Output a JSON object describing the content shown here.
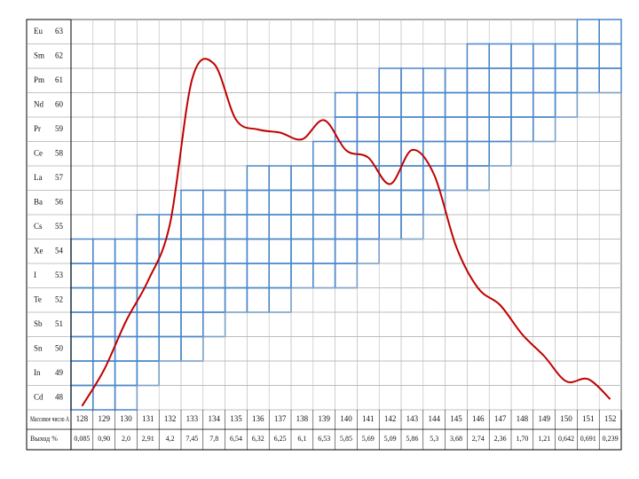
{
  "table": {
    "rows": [
      {
        "symbol": "Eu",
        "z": "63"
      },
      {
        "symbol": "Sm",
        "z": "62"
      },
      {
        "symbol": "Pm",
        "z": "61"
      },
      {
        "symbol": "Nd",
        "z": "60"
      },
      {
        "symbol": "Pr",
        "z": "59"
      },
      {
        "symbol": "Ce",
        "z": "58"
      },
      {
        "symbol": "La",
        "z": "57"
      },
      {
        "symbol": "Ba",
        "z": "56"
      },
      {
        "symbol": "Cs",
        "z": "55"
      },
      {
        "symbol": "Xe",
        "z": "54"
      },
      {
        "symbol": "I",
        "z": "53"
      },
      {
        "symbol": "Te",
        "z": "52"
      },
      {
        "symbol": "Sb",
        "z": "51"
      },
      {
        "symbol": "Sn",
        "z": "50"
      },
      {
        "symbol": "In",
        "z": "49"
      },
      {
        "symbol": "Cd",
        "z": "48"
      }
    ],
    "mass_label": "Массовое число A",
    "yield_label": "Выход %",
    "mass_numbers": [
      "128",
      "129",
      "130",
      "131",
      "132",
      "133",
      "134",
      "135",
      "136",
      "137",
      "138",
      "139",
      "140",
      "141",
      "142",
      "143",
      "144",
      "145",
      "146",
      "147",
      "148",
      "149",
      "150",
      "151",
      "152"
    ],
    "yields": [
      0.085,
      0.9,
      2.0,
      2.91,
      4.2,
      7.45,
      7.8,
      6.54,
      6.32,
      6.25,
      6.1,
      6.53,
      5.85,
      5.69,
      5.09,
      5.86,
      5.3,
      3.68,
      2.74,
      2.36,
      1.7,
      1.21,
      0.642,
      0.691,
      0.239
    ],
    "yield_labels": [
      "0,085",
      "0,90",
      "2,0",
      "2,91",
      "4,2",
      "7,45",
      "7,8",
      "6,54",
      "6,32",
      "6,25",
      "6,1",
      "6,53",
      "5,85",
      "5,69",
      "5,09",
      "5,86",
      "5,3",
      "3,68",
      "2,74",
      "2,36",
      "1,70",
      "1,21",
      "0,642",
      "0,691",
      "0,239"
    ],
    "curve_color": "#c00000"
  }
}
